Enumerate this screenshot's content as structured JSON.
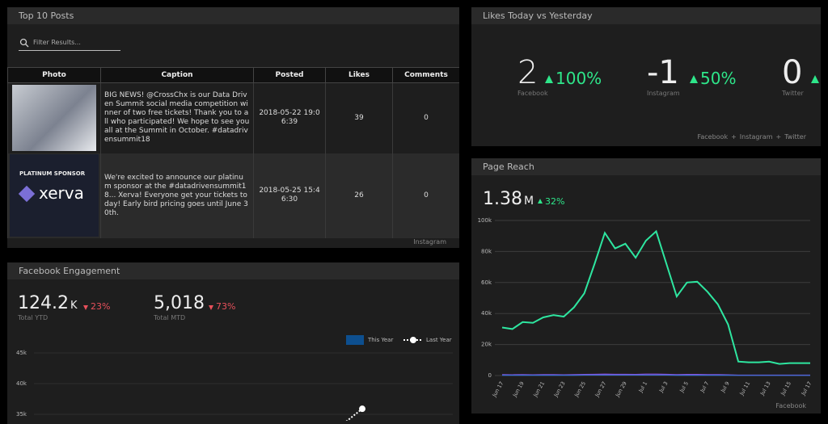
{
  "top_posts": {
    "title": "Top 10 Posts",
    "filter_placeholder": "Filter Results...",
    "columns": [
      "Photo",
      "Caption",
      "Posted",
      "Likes",
      "Comments"
    ],
    "rows": [
      {
        "caption": "BIG NEWS! @CrossChx is our Data Driven Summit social media competition winner of two free tickets! Thank you to all who participated! We hope to see you all at the Summit in October. #datadrivensummit18",
        "posted": "2018-05-22 19:06:39",
        "likes": 39,
        "comments": 0
      },
      {
        "image_texts": [
          "PLATINUM SPONSOR",
          "xerva"
        ],
        "caption": "We're excited to announce our platinum sponsor at the #datadrivensummit18... Xerva! Everyone get your tickets today! Early bird pricing goes until June 30th.",
        "posted": "2018-05-25 15:46:30",
        "likes": 26,
        "comments": 0
      }
    ],
    "source": "Instagram"
  },
  "likes": {
    "title": "Likes Today vs Yesterday",
    "metrics": [
      {
        "value": 2,
        "change": "100%",
        "label": "Facebook"
      },
      {
        "value": -1,
        "change": "50%",
        "label": "Instagram"
      },
      {
        "value": 0,
        "label": "Twitter"
      }
    ],
    "sources": [
      "Facebook",
      "Instagram",
      "Twitter"
    ]
  },
  "page_reach": {
    "title": "Page Reach",
    "total": "1.38",
    "total_unit": "M",
    "change": "32%",
    "source": "Facebook",
    "chart": {
      "type": "line",
      "categories": [
        "Jun 17",
        null,
        "Jun 19",
        null,
        "Jun 21",
        null,
        "Jun 23",
        null,
        "Jun 25",
        null,
        "Jun 27",
        null,
        "Jun 29",
        null,
        "Jul 1",
        null,
        "Jul 3",
        null,
        "Jul 5",
        null,
        "Jul 7",
        null,
        "Jul 9",
        null,
        "Jul 11",
        null,
        "Jul 13",
        null,
        "Jul 15",
        null,
        "Jul 17"
      ],
      "ylim": [
        0,
        100
      ],
      "yticks": [
        0,
        {
          "value": 20,
          "label": "20k"
        },
        {
          "value": 40,
          "label": "40k"
        },
        {
          "value": 60,
          "label": "60k"
        },
        {
          "value": 80,
          "label": "80k"
        },
        {
          "value": 100,
          "label": "100k"
        }
      ],
      "grid": true,
      "series": [
        {
          "color": "#2ee6a0",
          "values": [
            31,
            30,
            34.5,
            34,
            37.5,
            39,
            38,
            44,
            53,
            72,
            92,
            82,
            85,
            76,
            87,
            93,
            72,
            51,
            60,
            60.5,
            54,
            46,
            33,
            9,
            8.5,
            8.5,
            9,
            7.5,
            8,
            8,
            8
          ]
        },
        {
          "color": "#8a4fd8",
          "values": [
            0.6,
            0.5,
            0.6,
            0.5,
            0.6,
            0.6,
            0.5,
            0.6,
            0.7,
            0.8,
            0.9,
            0.8,
            0.8,
            0.7,
            0.9,
            0.9,
            0.8,
            0.6,
            0.7,
            0.7,
            0.6,
            0.6,
            0.5,
            0.3,
            0.3,
            0.3,
            0.3,
            0.3,
            0.3,
            0.3,
            0.3
          ]
        },
        {
          "color": "#3a6fd8",
          "values": [
            0.2,
            0.2,
            0.2,
            0.2,
            0.2,
            0.2,
            0.2,
            0.2,
            0.3,
            0.3,
            0.3,
            0.3,
            0.3,
            0.3,
            0.3,
            0.3,
            0.3,
            0.2,
            0.2,
            0.2,
            0.2,
            0.2,
            0.2,
            0.1,
            0.1,
            0.1,
            0.1,
            0.1,
            0.1,
            0.1,
            0.1
          ]
        }
      ]
    }
  },
  "facebook_engagement": {
    "title": "Facebook Engagement",
    "metrics": [
      {
        "value": "124.2",
        "unit": "K",
        "change": "23%",
        "label": "Total YTD"
      },
      {
        "value": "5,018",
        "change": "73%",
        "label": "Total MTD"
      }
    ],
    "chart": {
      "type": "line",
      "ylim": [
        34,
        46
      ],
      "yticks": [
        {
          "value": 35,
          "label": "35k"
        },
        {
          "value": 40,
          "label": "40k"
        },
        {
          "value": 45,
          "label": "45k"
        }
      ],
      "grid": true,
      "series": [
        {
          "name": "This Year",
          "color": "#0d4f8f",
          "values": [
            null,
            null
          ]
        },
        {
          "name": "Last Year",
          "color": "#ffffff",
          "values": [
            33.5,
            35.9
          ]
        }
      ]
    }
  }
}
